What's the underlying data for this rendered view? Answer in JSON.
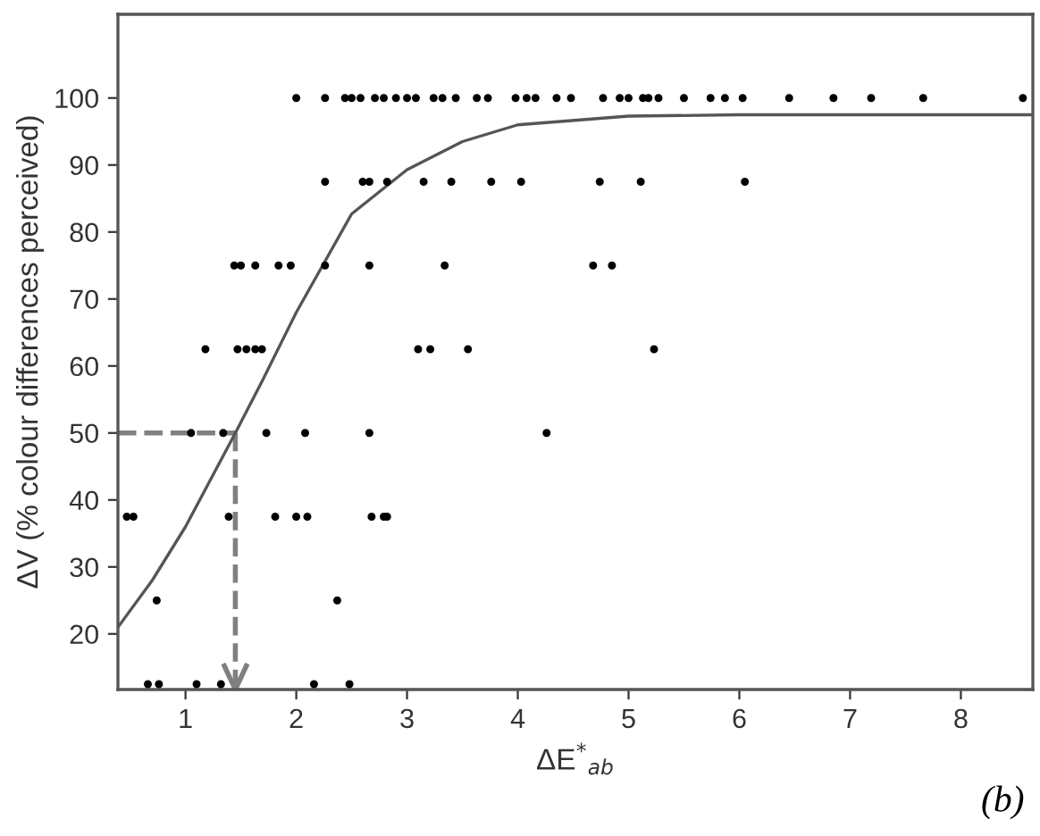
{
  "chart_data": {
    "type": "scatter",
    "xlabel": "ΔE$^{*}$$_{ab}$",
    "ylabel": "ΔV (% colour differences perceived)",
    "xlim": [
      0.39,
      8.65
    ],
    "ylim": [
      11.7,
      112.5
    ],
    "xticks": [
      1,
      2,
      3,
      4,
      5,
      6,
      7,
      8
    ],
    "yticks": [
      20,
      30,
      40,
      50,
      60,
      70,
      80,
      90,
      100
    ],
    "grid": false,
    "marker": "circle",
    "series": [
      {
        "color": "#000000",
        "x": [
          2.0,
          2.26,
          2.44,
          2.5,
          2.58,
          2.71,
          2.79,
          2.9,
          3.0,
          3.08,
          3.24,
          3.32,
          3.44,
          3.63,
          3.73,
          3.98,
          4.08,
          4.16,
          4.35,
          4.48,
          4.77,
          4.92,
          5.0,
          5.13,
          5.18,
          5.27,
          5.5,
          5.74,
          5.87,
          6.03,
          6.45,
          6.85,
          7.19,
          7.66,
          8.56,
          2.26,
          2.6,
          2.66,
          2.82,
          3.15,
          3.4,
          3.76,
          4.03,
          4.74,
          5.11,
          6.05,
          1.44,
          1.5,
          1.63,
          1.84,
          1.95,
          2.26,
          2.66,
          3.34,
          4.68,
          4.85,
          1.18,
          1.47,
          1.55,
          1.63,
          1.69,
          3.1,
          3.21,
          3.55,
          5.23,
          1.05,
          1.34,
          1.73,
          2.08,
          2.66,
          4.26,
          0.47,
          0.53,
          1.39,
          1.81,
          2.0,
          2.1,
          2.68,
          2.79,
          2.82,
          0.74,
          2.37,
          0.66,
          0.76,
          1.1,
          1.32,
          2.16,
          2.48
        ],
        "values": [
          100,
          100,
          100,
          100,
          100,
          100,
          100,
          100,
          100,
          100,
          100,
          100,
          100,
          100,
          100,
          100,
          100,
          100,
          100,
          100,
          100,
          100,
          100,
          100,
          100,
          100,
          100,
          100,
          100,
          100,
          100,
          100,
          100,
          100,
          100,
          87.5,
          87.5,
          87.5,
          87.5,
          87.5,
          87.5,
          87.5,
          87.5,
          87.5,
          87.5,
          87.5,
          75,
          75,
          75,
          75,
          75,
          75,
          75,
          75,
          75,
          75,
          62.5,
          62.5,
          62.5,
          62.5,
          62.5,
          62.5,
          62.5,
          62.5,
          62.5,
          50,
          50,
          50,
          50,
          50,
          50,
          37.5,
          37.5,
          37.5,
          37.5,
          37.5,
          37.5,
          37.5,
          37.5,
          37.5,
          25,
          25,
          12.5,
          12.5,
          12.5,
          12.5,
          12.5,
          12.5
        ]
      },
      {
        "type": "line",
        "color": "#555555",
        "marker": "none",
        "x": [
          0.39,
          0.7,
          1.0,
          1.45,
          1.7,
          2.0,
          2.5,
          3.0,
          3.5,
          4.0,
          5.0,
          6.0,
          8.65
        ],
        "values": [
          21,
          28,
          36,
          50,
          58,
          68,
          82.7,
          89.3,
          93.5,
          96,
          97.3,
          97.5,
          97.5
        ]
      }
    ],
    "ref_lines": [
      {
        "axis": "y",
        "value": 50,
        "color": "#808080",
        "line_style": "dashed"
      },
      {
        "axis": "x",
        "value": 1.45,
        "color": "#808080",
        "line_style": "dashed"
      }
    ],
    "annotations": [
      "(b)"
    ]
  }
}
